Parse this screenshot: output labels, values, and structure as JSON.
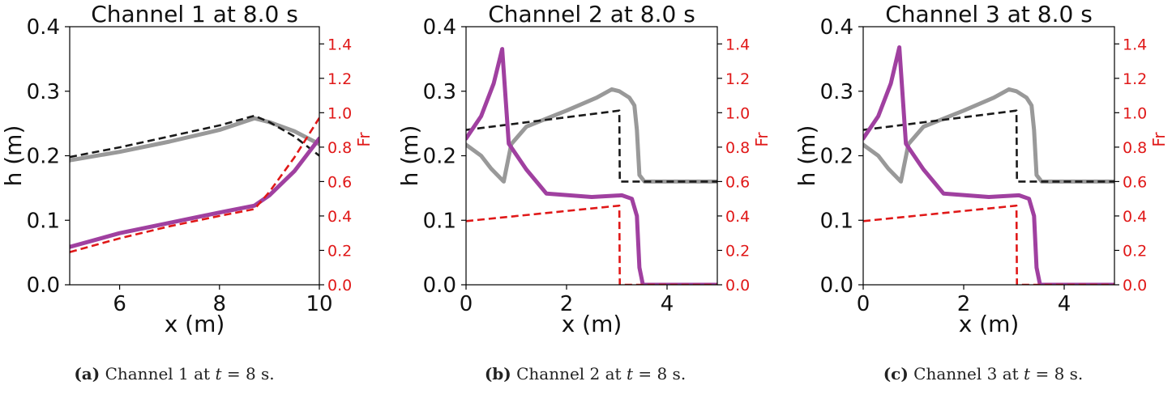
{
  "colors": {
    "h_solid": "#999999",
    "h_dashed": "#1a1a1a",
    "fr_solid": "#a040a0",
    "fr_dashed": "#e01818",
    "right_axis": "#e01818"
  },
  "captions": [
    {
      "tag": "(a)",
      "pre": " Channel 1 at ",
      "t": "t",
      "post": " = 8 s."
    },
    {
      "tag": "(b)",
      "pre": " Channel 2 at ",
      "t": "t",
      "post": " = 8 s."
    },
    {
      "tag": "(c)",
      "pre": " Channel 3 at ",
      "t": "t",
      "post": " = 8 s."
    }
  ],
  "chart_data": [
    {
      "type": "line",
      "title": "Channel 1 at 8.0 s",
      "xlabel": "x (m)",
      "ylabel": "h (m)",
      "y2label": "Fr",
      "xlim": [
        5,
        10
      ],
      "ylim": [
        0,
        0.4
      ],
      "y2lim": [
        0,
        1.5
      ],
      "xticks": [
        6,
        8,
        10
      ],
      "yticks": [
        0.0,
        0.1,
        0.2,
        0.3,
        0.4
      ],
      "y2ticks": [
        0.0,
        0.2,
        0.4,
        0.6,
        0.8,
        1.0,
        1.2,
        1.4
      ],
      "series": [
        {
          "axis": "left",
          "style": "solid",
          "color": "#999999",
          "x": [
            5,
            6,
            7,
            8,
            8.7,
            9.0,
            9.5,
            10
          ],
          "y": [
            0.193,
            0.206,
            0.222,
            0.24,
            0.258,
            0.252,
            0.238,
            0.218
          ]
        },
        {
          "axis": "left",
          "style": "dashed",
          "color": "#1a1a1a",
          "x": [
            5,
            6,
            7,
            8,
            8.7,
            9.0,
            9.5,
            10
          ],
          "y": [
            0.198,
            0.213,
            0.23,
            0.247,
            0.262,
            0.252,
            0.23,
            0.2
          ]
        },
        {
          "axis": "right",
          "style": "solid",
          "color": "#a040a0",
          "x": [
            5,
            6,
            7,
            8,
            8.7,
            9.0,
            9.5,
            10
          ],
          "y": [
            0.22,
            0.3,
            0.36,
            0.42,
            0.46,
            0.52,
            0.66,
            0.85
          ]
        },
        {
          "axis": "right",
          "style": "dashed",
          "color": "#e01818",
          "x": [
            5,
            6,
            7,
            8,
            8.7,
            9.0,
            9.5,
            10
          ],
          "y": [
            0.19,
            0.27,
            0.34,
            0.4,
            0.44,
            0.54,
            0.74,
            0.97
          ]
        }
      ]
    },
    {
      "type": "line",
      "title": "Channel 2 at 8.0 s",
      "xlabel": "x (m)",
      "ylabel": "h (m)",
      "y2label": "Fr",
      "xlim": [
        0,
        5
      ],
      "ylim": [
        0,
        0.4
      ],
      "y2lim": [
        0,
        1.5
      ],
      "xticks": [
        0,
        2,
        4
      ],
      "yticks": [
        0.0,
        0.1,
        0.2,
        0.3,
        0.4
      ],
      "y2ticks": [
        0.0,
        0.2,
        0.4,
        0.6,
        0.8,
        1.0,
        1.2,
        1.4
      ],
      "series": [
        {
          "axis": "left",
          "style": "solid",
          "color": "#999999",
          "x": [
            0,
            0.3,
            0.5,
            0.75,
            0.9,
            1.2,
            2.0,
            2.6,
            2.9,
            3.05,
            3.25,
            3.35,
            3.4,
            3.45,
            3.55,
            5
          ],
          "y": [
            0.217,
            0.2,
            0.18,
            0.16,
            0.218,
            0.245,
            0.27,
            0.29,
            0.303,
            0.3,
            0.29,
            0.278,
            0.24,
            0.17,
            0.16,
            0.16
          ]
        },
        {
          "axis": "left",
          "style": "dashed",
          "color": "#1a1a1a",
          "x": [
            0,
            3.05,
            3.06,
            5
          ],
          "y": [
            0.24,
            0.27,
            0.16,
            0.16
          ]
        },
        {
          "axis": "right",
          "style": "solid",
          "color": "#a040a0",
          "x": [
            0,
            0.3,
            0.55,
            0.72,
            0.85,
            1.2,
            1.6,
            2.5,
            3.1,
            3.3,
            3.4,
            3.45,
            3.52,
            5
          ],
          "y": [
            0.85,
            0.98,
            1.17,
            1.37,
            0.82,
            0.67,
            0.53,
            0.51,
            0.52,
            0.5,
            0.4,
            0.1,
            0.0,
            0.0
          ]
        },
        {
          "axis": "right",
          "style": "dashed",
          "color": "#e01818",
          "x": [
            0,
            3.05,
            3.06,
            5
          ],
          "y": [
            0.37,
            0.46,
            0.0,
            0.0
          ]
        }
      ]
    },
    {
      "type": "line",
      "title": "Channel 3 at 8.0 s",
      "xlabel": "x (m)",
      "ylabel": "h (m)",
      "y2label": "Fr",
      "xlim": [
        0,
        5
      ],
      "ylim": [
        0,
        0.4
      ],
      "y2lim": [
        0,
        1.5
      ],
      "xticks": [
        0,
        2,
        4
      ],
      "yticks": [
        0.0,
        0.1,
        0.2,
        0.3,
        0.4
      ],
      "y2ticks": [
        0.0,
        0.2,
        0.4,
        0.6,
        0.8,
        1.0,
        1.2,
        1.4
      ],
      "series": [
        {
          "axis": "left",
          "style": "solid",
          "color": "#999999",
          "x": [
            0,
            0.3,
            0.5,
            0.75,
            0.9,
            1.2,
            2.0,
            2.6,
            2.9,
            3.05,
            3.25,
            3.35,
            3.4,
            3.45,
            3.55,
            5
          ],
          "y": [
            0.217,
            0.2,
            0.18,
            0.16,
            0.218,
            0.245,
            0.27,
            0.29,
            0.303,
            0.3,
            0.29,
            0.278,
            0.24,
            0.17,
            0.16,
            0.16
          ]
        },
        {
          "axis": "left",
          "style": "dashed",
          "color": "#1a1a1a",
          "x": [
            0,
            3.05,
            3.06,
            5
          ],
          "y": [
            0.24,
            0.27,
            0.16,
            0.16
          ]
        },
        {
          "axis": "right",
          "style": "solid",
          "color": "#a040a0",
          "x": [
            0,
            0.3,
            0.55,
            0.72,
            0.85,
            1.2,
            1.6,
            2.5,
            3.1,
            3.3,
            3.4,
            3.45,
            3.52,
            5
          ],
          "y": [
            0.85,
            0.98,
            1.17,
            1.38,
            0.82,
            0.67,
            0.53,
            0.51,
            0.52,
            0.5,
            0.4,
            0.1,
            0.0,
            0.0
          ]
        },
        {
          "axis": "right",
          "style": "dashed",
          "color": "#e01818",
          "x": [
            0,
            3.05,
            3.06,
            5
          ],
          "y": [
            0.37,
            0.46,
            0.0,
            0.0
          ]
        }
      ]
    }
  ]
}
